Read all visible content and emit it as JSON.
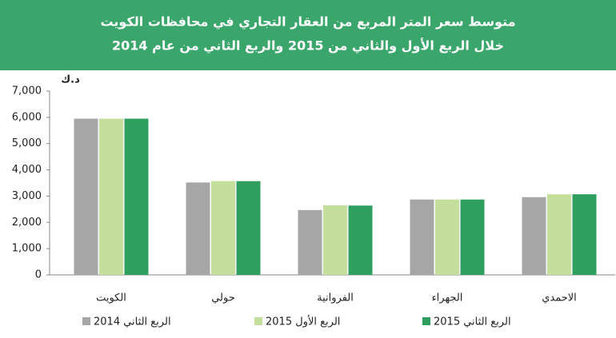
{
  "chart_data": {
    "type": "bar",
    "title": "متوسط سعر المتر المربع من العقار التجاري في محافظات الكويت",
    "subtitle": "خلال الربع الأول والثاني  من 2015 والربع الثاني من عام 2014",
    "y_label": "د.ك",
    "categories": [
      "الكويت",
      "حولي",
      "الفروانية",
      "الجهراء",
      "الاحمدي"
    ],
    "series": [
      {
        "name": "الربع الثاني 2014",
        "color": "#a6a6a6",
        "values": [
          5950,
          3520,
          2470,
          2870,
          2960
        ]
      },
      {
        "name": "الربع الأول 2015",
        "color": "#c4de9c",
        "values": [
          5950,
          3570,
          2650,
          2870,
          3070
        ]
      },
      {
        "name": "الربع الثاني 2015",
        "color": "#2e9f5e",
        "values": [
          5950,
          3570,
          2640,
          2870,
          3070
        ]
      }
    ],
    "ylim": [
      0,
      7000
    ],
    "yticks": [
      0,
      {
        "value": 1000,
        "label": "1,000"
      },
      {
        "value": 2000,
        "label": "2,000"
      },
      {
        "value": 3000,
        "label": "3,000"
      },
      {
        "value": 4000,
        "label": "4,000"
      },
      {
        "value": 5000,
        "label": "5,000"
      },
      {
        "value": 6000,
        "label": "6,000"
      },
      {
        "value": 7000,
        "label": "7,000"
      }
    ],
    "grid": false
  }
}
